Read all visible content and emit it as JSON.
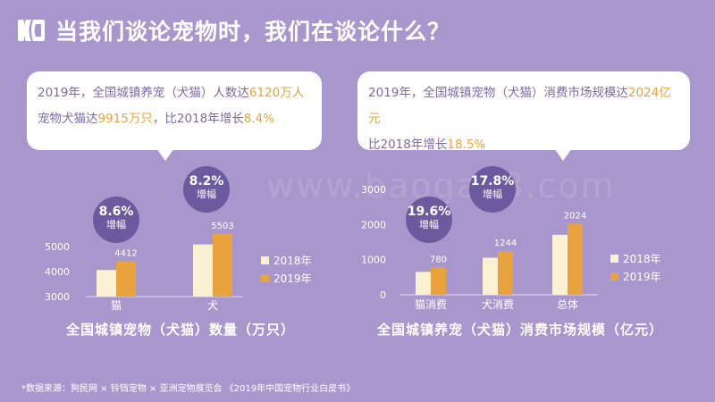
{
  "header": {
    "title": "当我们谈论宠物时，我们在谈论什么？"
  },
  "bubble_left": {
    "l1_a": "2019年，全国城镇养宠（犬猫）人数达",
    "l1_hl": "6120万人",
    "l2_a": "宠物犬猫达",
    "l2_hl1": "9915万只",
    "l2_b": "，比2018年增长",
    "l2_hl2": "8.4%"
  },
  "bubble_right": {
    "l1_a": "2019年，全国城镇宠物（犬猫）消费市场规模达",
    "l1_hl": "2024亿元",
    "l2_a": "比2018年增长",
    "l2_hl": "18.5%"
  },
  "watermark": "www.baogao8.com",
  "colors": {
    "bg": "#a897cc",
    "bar2018": "#fbf1d2",
    "bar2019": "#e8a33c",
    "circle": "#6c5a9e",
    "highlight": "#e8a33c"
  },
  "chart_data": [
    {
      "type": "bar",
      "categories": [
        "猫",
        "犬"
      ],
      "series": [
        {
          "name": "2018年",
          "values": [
            4064,
            5085
          ]
        },
        {
          "name": "2019年",
          "values": [
            4412,
            5503
          ]
        }
      ],
      "data_labels": [
        "4412",
        "5503"
      ],
      "yticks": [
        "5000",
        "4000",
        "3000"
      ],
      "ylim": [
        3000,
        5500
      ],
      "growth": [
        {
          "pct": "8.6%",
          "label": "增幅"
        },
        {
          "pct": "8.2%",
          "label": "增幅"
        }
      ],
      "caption": "全国城镇宠物（犬猫）数量（万只）",
      "legend": [
        "2018年",
        "2019年"
      ]
    },
    {
      "type": "bar",
      "categories": [
        "猫消费",
        "犬消费",
        "总体"
      ],
      "series": [
        {
          "name": "2018年",
          "values": [
            653,
            1056,
            1708
          ]
        },
        {
          "name": "2019年",
          "values": [
            780,
            1244,
            2024
          ]
        }
      ],
      "data_labels": [
        "780",
        "1244",
        "2024"
      ],
      "yticks": [
        "3000",
        "2000",
        "1000",
        "0"
      ],
      "ylim": [
        0,
        3000
      ],
      "growth": [
        {
          "pct": "19.6%",
          "label": "增幅"
        },
        {
          "pct": "17.8%",
          "label": "增幅"
        }
      ],
      "caption": "全国城镇养宠（犬猫）消费市场规模（亿元）",
      "legend": [
        "2018年",
        "2019年"
      ]
    }
  ],
  "source": "*数据来源：狗民网 × 铃铛宠物 × 亚洲宠物展览会 《2019年中国宠物行业白皮书》"
}
